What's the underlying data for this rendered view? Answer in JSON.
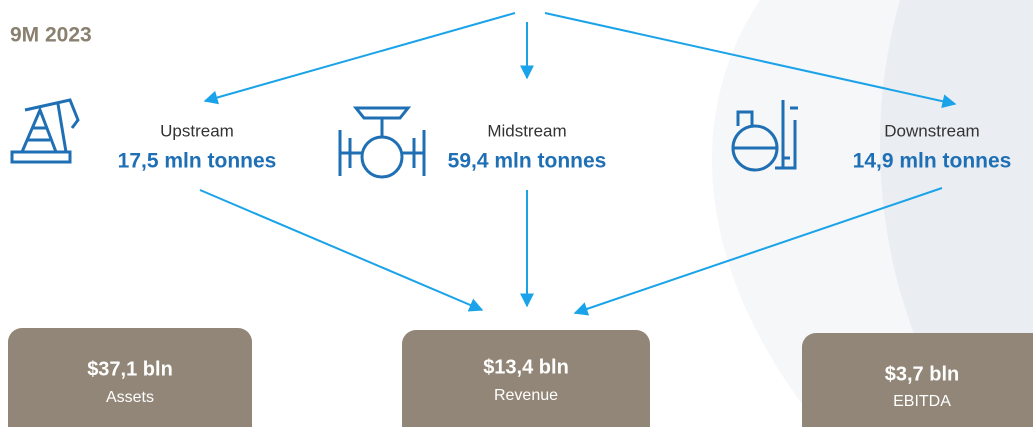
{
  "period": "9M 2023",
  "segments": [
    {
      "label": "Upstream",
      "value": "17,5 mln tonnes"
    },
    {
      "label": "Midstream",
      "value": "59,4 mln tonnes"
    },
    {
      "label": "Downstream",
      "value": "14,9 mln tonnes"
    }
  ],
  "metrics": [
    {
      "value": "$37,1 bln",
      "label": "Assets"
    },
    {
      "value": "$13,4 bln",
      "label": "Revenue"
    },
    {
      "value": "$3,7 bln",
      "label": "EBITDA"
    }
  ]
}
